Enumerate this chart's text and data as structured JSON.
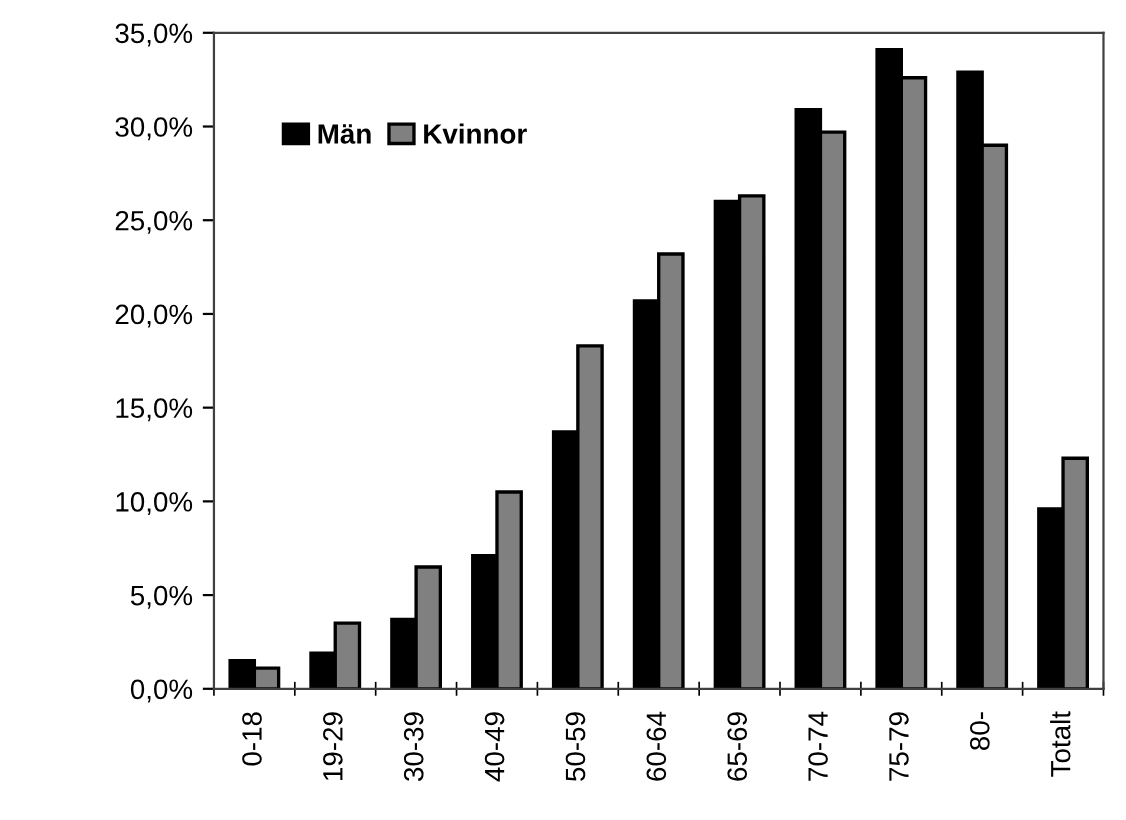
{
  "chart_data": {
    "type": "bar",
    "categories": [
      "0-18",
      "19-29",
      "30-39",
      "40-49",
      "50-59",
      "60-64",
      "65-69",
      "70-74",
      "75-79",
      "80-",
      "Totalt"
    ],
    "series": [
      {
        "name": "Män",
        "color": "#000000",
        "values": [
          1.5,
          1.9,
          3.7,
          7.1,
          13.7,
          20.7,
          26.0,
          30.9,
          34.1,
          32.9,
          9.6
        ]
      },
      {
        "name": "Kvinnor",
        "color": "#808080",
        "values": [
          1.1,
          3.5,
          6.5,
          10.5,
          18.3,
          23.2,
          26.3,
          29.7,
          32.6,
          29.0,
          12.3
        ]
      }
    ],
    "ylim": [
      0,
      35
    ],
    "yticks": [
      {
        "value": 0,
        "label": "0,0%"
      },
      {
        "value": 5,
        "label": "5,0%"
      },
      {
        "value": 10,
        "label": "10,0%"
      },
      {
        "value": 15,
        "label": "15,0%"
      },
      {
        "value": 20,
        "label": "20,0%"
      },
      {
        "value": 25,
        "label": "25,0%"
      },
      {
        "value": 30,
        "label": "30,0%"
      },
      {
        "value": 35,
        "label": "35,0%"
      }
    ],
    "grid": false,
    "legend": "top left"
  }
}
